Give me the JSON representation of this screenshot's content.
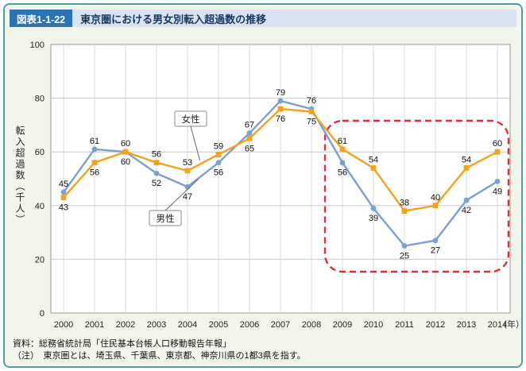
{
  "figure": {
    "tag": "図表1-1-22",
    "title": "東京圏における男女別転入超過数の推移"
  },
  "chart_data": {
    "type": "line",
    "x": [
      2000,
      2001,
      2002,
      2003,
      2004,
      2005,
      2006,
      2007,
      2008,
      2009,
      2010,
      2011,
      2012,
      2013,
      2014
    ],
    "series": [
      {
        "name": "男性",
        "color": "#7b9fd4",
        "marker": "circle",
        "values": [
          45,
          61,
          60,
          52,
          47,
          56,
          67,
          79,
          76,
          56,
          39,
          25,
          27,
          42,
          49
        ]
      },
      {
        "name": "女性",
        "color": "#f5a11c",
        "marker": "square",
        "values": [
          43,
          56,
          60,
          56,
          53,
          59,
          65,
          76,
          75,
          61,
          54,
          38,
          40,
          54,
          60
        ]
      }
    ],
    "ylabel": "転入超過数（千人）",
    "xunit": "（年）",
    "ylim": [
      0,
      100
    ],
    "yticks": [
      0,
      20,
      40,
      60,
      80,
      100
    ],
    "grid": true,
    "legend_position": "callouts-on-plot",
    "highlight": {
      "from": 2009,
      "to": 2014,
      "color": "#e0312e",
      "style": "dashed-rounded"
    }
  },
  "footer": {
    "source": "資料：総務省統計局「住民基本台帳人口移動報告年報」",
    "note": "（注）　東京圏とは、埼玉県、千葉県、東京都、神奈川県の1都3県を指す。"
  }
}
